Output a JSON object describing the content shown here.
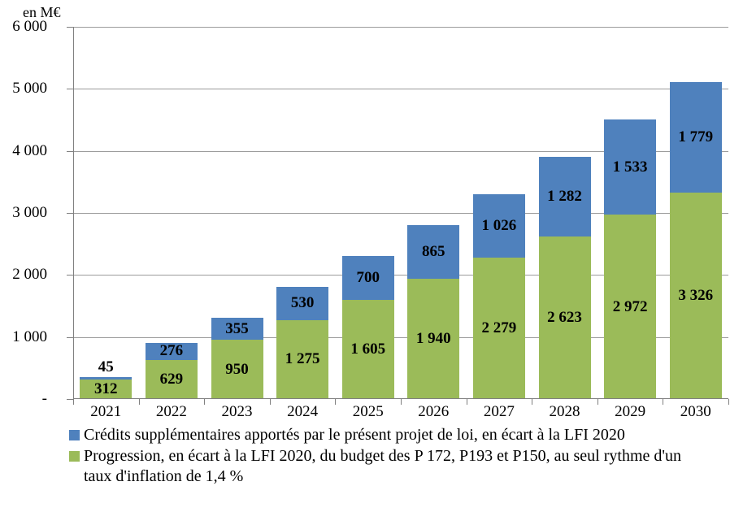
{
  "chart_data": {
    "type": "bar",
    "stacked": true,
    "title": "en M€",
    "categories": [
      "2021",
      "2022",
      "2023",
      "2024",
      "2025",
      "2026",
      "2027",
      "2028",
      "2029",
      "2030"
    ],
    "series": [
      {
        "name": "Progression, en écart à la LFI 2020, du budget des P 172, P193 et P150, au seul rythme d'un taux d'inflation de 1,4 %",
        "color": "#9BBB59",
        "values": [
          312,
          629,
          950,
          1275,
          1605,
          1940,
          2279,
          2623,
          2972,
          3326
        ]
      },
      {
        "name": "Crédits supplémentaires apportés par le présent projet de loi, en écart à la LFI 2020",
        "color": "#4F81BD",
        "values": [
          45,
          276,
          355,
          530,
          700,
          865,
          1026,
          1282,
          1533,
          1779
        ]
      }
    ],
    "totals": [
      357,
      905,
      1305,
      1805,
      2305,
      2805,
      3305,
      3905,
      4505,
      5105
    ],
    "y_axis": {
      "min": 0,
      "max": 6000,
      "step": 1000,
      "tick_labels_bottom_to_top": [
        "-",
        "1 000",
        "2 000",
        "3 000",
        "4 000",
        "5 000",
        "6 000"
      ]
    },
    "grid": true,
    "legend_position": "bottom",
    "value_labels": "on-segments-bold"
  },
  "colors": {
    "gridline": "#9b9b9b",
    "axis": "#808080",
    "label_text": "#000000"
  }
}
